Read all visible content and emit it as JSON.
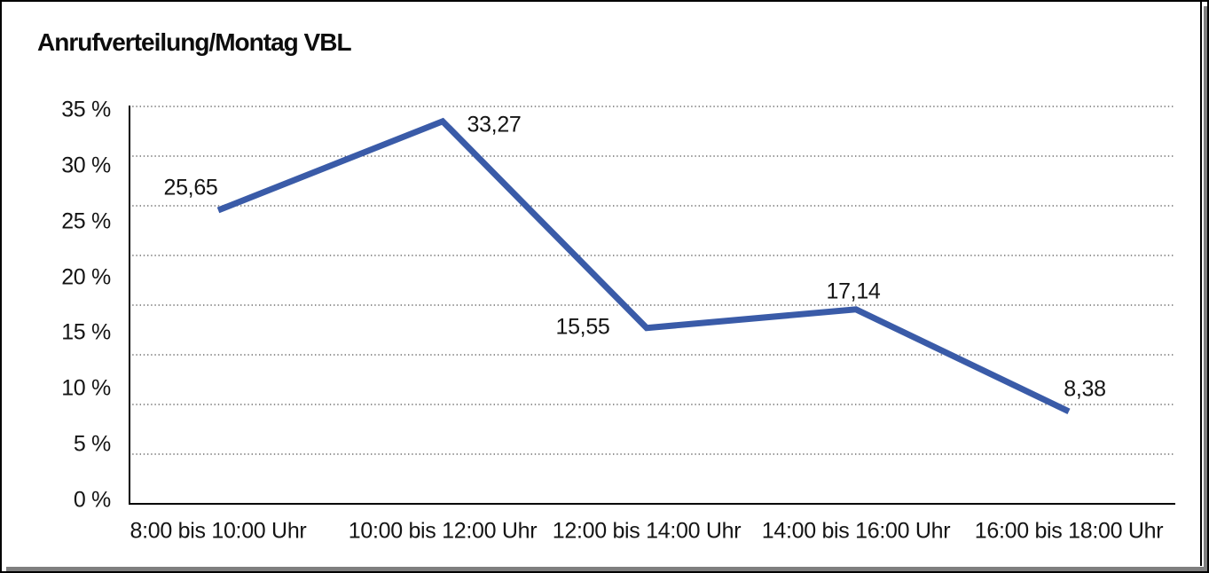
{
  "title": "Anrufverteilung/Montag VBL",
  "chart_data": {
    "type": "line",
    "title": "Anrufverteilung/Montag VBL",
    "categories": [
      "8:00 bis 10:00 Uhr",
      "10:00 bis 12:00 Uhr",
      "12:00 bis 14:00 Uhr",
      "14:00 bis 16:00 Uhr",
      "16:00 bis 18:00 Uhr"
    ],
    "values": [
      25.65,
      33.27,
      15.55,
      17.14,
      8.38
    ],
    "value_labels": [
      "25,65",
      "33,27",
      "15,55",
      "17,14",
      "8,38"
    ],
    "y_tick_labels": [
      "35 %",
      "30 %",
      "25 %",
      "20 %",
      "15 %",
      "10 %",
      "5 %",
      "0 %"
    ],
    "ylim": [
      0,
      35
    ],
    "y_tick_step": 5,
    "unit": "%",
    "grid": "horizontal-dotted",
    "legend": "none",
    "line_color": "#3A5BA8",
    "grid_color": "#555555",
    "axis_color": "#000000",
    "text_color": "#141414"
  }
}
